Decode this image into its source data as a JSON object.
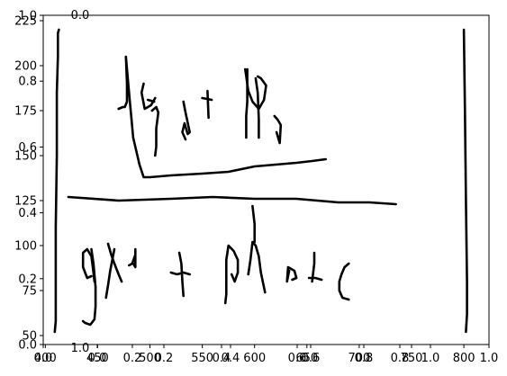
{
  "chart_data": {
    "type": "line",
    "title": "",
    "xlabel": "",
    "ylabel": "",
    "grid": false,
    "x_ticks_main": [
      "400",
      "450",
      "500",
      "550",
      "600",
      "650",
      "700",
      "750",
      "800"
    ],
    "y_ticks_main": [
      "50",
      "75",
      "100",
      "125",
      "150",
      "175",
      "200",
      "225"
    ],
    "x_ticks_overlay_a": [
      "0.0",
      "0.2",
      "0.4",
      "0.6",
      "0.8",
      "1.0"
    ],
    "x_ticks_overlay_b": [
      "0.0",
      "0.2",
      "0.4",
      "0.6",
      "0.8",
      "1.0"
    ],
    "y_ticks_overlay": [
      "0.0",
      "0.2",
      "0.4",
      "0.6",
      "0.8",
      "1.0"
    ],
    "stray_tick_labels": [
      "0.0",
      "1.0"
    ],
    "xlim": [
      398,
      824
    ],
    "ylim": [
      45,
      228
    ],
    "series": [
      {
        "points": [
          [
            409,
            52
          ],
          [
            410,
            58
          ],
          [
            410,
            110
          ],
          [
            411,
            150
          ],
          [
            411,
            185
          ],
          [
            412,
            205
          ],
          [
            412,
            218
          ],
          [
            413,
            220
          ]
        ]
      },
      {
        "points": [
          [
            802,
            52
          ],
          [
            803,
            62
          ],
          [
            803,
            80
          ],
          [
            802,
            125
          ],
          [
            801,
            175
          ],
          [
            800,
            220
          ]
        ]
      },
      {
        "points": [
          [
            422,
            127
          ],
          [
            470,
            125
          ],
          [
            520,
            126
          ],
          [
            560,
            127
          ],
          [
            600,
            126
          ],
          [
            640,
            126
          ],
          [
            680,
            124
          ],
          [
            710,
            124
          ],
          [
            735,
            123
          ]
        ]
      },
      {
        "points": [
          [
            470,
            176
          ],
          [
            474,
            177
          ],
          [
            476,
            177
          ],
          [
            478,
            180
          ],
          [
            478,
            190
          ],
          [
            477,
            205
          ],
          [
            480,
            185
          ],
          [
            484,
            160
          ],
          [
            490,
            145
          ],
          [
            494,
            138
          ],
          [
            500,
            138
          ],
          [
            520,
            139
          ],
          [
            550,
            140
          ],
          [
            575,
            141
          ],
          [
            600,
            144
          ],
          [
            620,
            145
          ],
          [
            640,
            146
          ],
          [
            655,
            147
          ],
          [
            668,
            148
          ]
        ]
      },
      {
        "points": [
          [
            494,
            190
          ],
          [
            492,
            185
          ],
          [
            495,
            176
          ],
          [
            501,
            178
          ],
          [
            505,
            182
          ]
        ]
      },
      {
        "points": [
          [
            502,
            175
          ],
          [
            506,
            177
          ],
          [
            508,
            174
          ],
          [
            506,
            165
          ],
          [
            506,
            155
          ],
          [
            505,
            150
          ]
        ]
      },
      {
        "points": [
          [
            498,
            181
          ],
          [
            504,
            180
          ]
        ]
      },
      {
        "points": [
          [
            534,
            159
          ],
          [
            531,
            163
          ],
          [
            533,
            168
          ],
          [
            536,
            162
          ],
          [
            538,
            163
          ],
          [
            534,
            174
          ],
          [
            532,
            180
          ]
        ]
      },
      {
        "points": [
          [
            555,
            186
          ],
          [
            556,
            171
          ]
        ]
      },
      {
        "points": [
          [
            550,
            182
          ],
          [
            559,
            181
          ]
        ]
      },
      {
        "points": [
          [
            591,
            198
          ],
          [
            594,
            186
          ],
          [
            598,
            180
          ],
          [
            604,
            176
          ],
          [
            609,
            181
          ],
          [
            611,
            189
          ],
          [
            606,
            193
          ],
          [
            603,
            194
          ]
        ]
      },
      {
        "points": [
          [
            601,
            193
          ],
          [
            603,
            185
          ],
          [
            604,
            170
          ],
          [
            604,
            160
          ]
        ]
      },
      {
        "points": [
          [
            592,
            160
          ],
          [
            592,
            172
          ],
          [
            593,
            180
          ],
          [
            593,
            198
          ]
        ]
      },
      {
        "points": [
          [
            621,
            163
          ],
          [
            624,
            157
          ],
          [
            625,
            167
          ],
          [
            622,
            170
          ],
          [
            619,
            172
          ]
        ]
      },
      {
        "points": [
          [
            444,
            98
          ],
          [
            446,
            90
          ],
          [
            448,
            77
          ],
          [
            448,
            66
          ],
          [
            447,
            59
          ],
          [
            443,
            56
          ],
          [
            438,
            57
          ],
          [
            436,
            58
          ]
        ]
      },
      {
        "points": [
          [
            444,
            83
          ],
          [
            440,
            82
          ],
          [
            436,
            88
          ],
          [
            436,
            96
          ],
          [
            440,
            98
          ],
          [
            444,
            94
          ],
          [
            446,
            85
          ],
          [
            447,
            80
          ]
        ]
      },
      {
        "points": [
          [
            460,
            101
          ],
          [
            463,
            95
          ],
          [
            466,
            90
          ],
          [
            470,
            84
          ],
          [
            473,
            80
          ]
        ]
      },
      {
        "points": [
          [
            458,
            71
          ],
          [
            460,
            78
          ],
          [
            462,
            86
          ],
          [
            464,
            92
          ],
          [
            466,
            98
          ]
        ]
      },
      {
        "points": [
          [
            484,
            90
          ],
          [
            486,
            88
          ],
          [
            486,
            98
          ],
          [
            486,
            95
          ],
          [
            483,
            90
          ],
          [
            480,
            89
          ]
        ]
      },
      {
        "points": [
          [
            520,
            85
          ],
          [
            526,
            84
          ],
          [
            532,
            85
          ],
          [
            538,
            84
          ]
        ]
      },
      {
        "points": [
          [
            528,
            96
          ],
          [
            530,
            90
          ],
          [
            531,
            80
          ],
          [
            532,
            72
          ]
        ]
      },
      {
        "points": [
          [
            572,
            68
          ],
          [
            573,
            73
          ],
          [
            573,
            92
          ],
          [
            575,
            100
          ],
          [
            580,
            97
          ],
          [
            584,
            92
          ],
          [
            584,
            85
          ],
          [
            581,
            80
          ],
          [
            578,
            84
          ]
        ]
      },
      {
        "points": [
          [
            594,
            84
          ],
          [
            596,
            92
          ],
          [
            598,
            102
          ],
          [
            601,
            100
          ],
          [
            604,
            94
          ],
          [
            606,
            85
          ],
          [
            610,
            74
          ]
        ]
      },
      {
        "points": [
          [
            600,
            102
          ],
          [
            600,
            112
          ],
          [
            598,
            122
          ]
        ]
      },
      {
        "points": [
          [
            633,
            86
          ],
          [
            631,
            80
          ],
          [
            632,
            88
          ],
          [
            638,
            86
          ],
          [
            640,
            82
          ],
          [
            636,
            81
          ]
        ]
      },
      {
        "points": [
          [
            655,
            80
          ],
          [
            656,
            85
          ],
          [
            657,
            90
          ],
          [
            657,
            96
          ]
        ]
      },
      {
        "points": [
          [
            652,
            82
          ],
          [
            658,
            82
          ],
          [
            664,
            81
          ]
        ]
      },
      {
        "points": [
          [
            690,
            90
          ],
          [
            686,
            88
          ],
          [
            683,
            84
          ],
          [
            681,
            80
          ],
          [
            681,
            75
          ],
          [
            684,
            71
          ],
          [
            690,
            70
          ]
        ]
      }
    ]
  }
}
